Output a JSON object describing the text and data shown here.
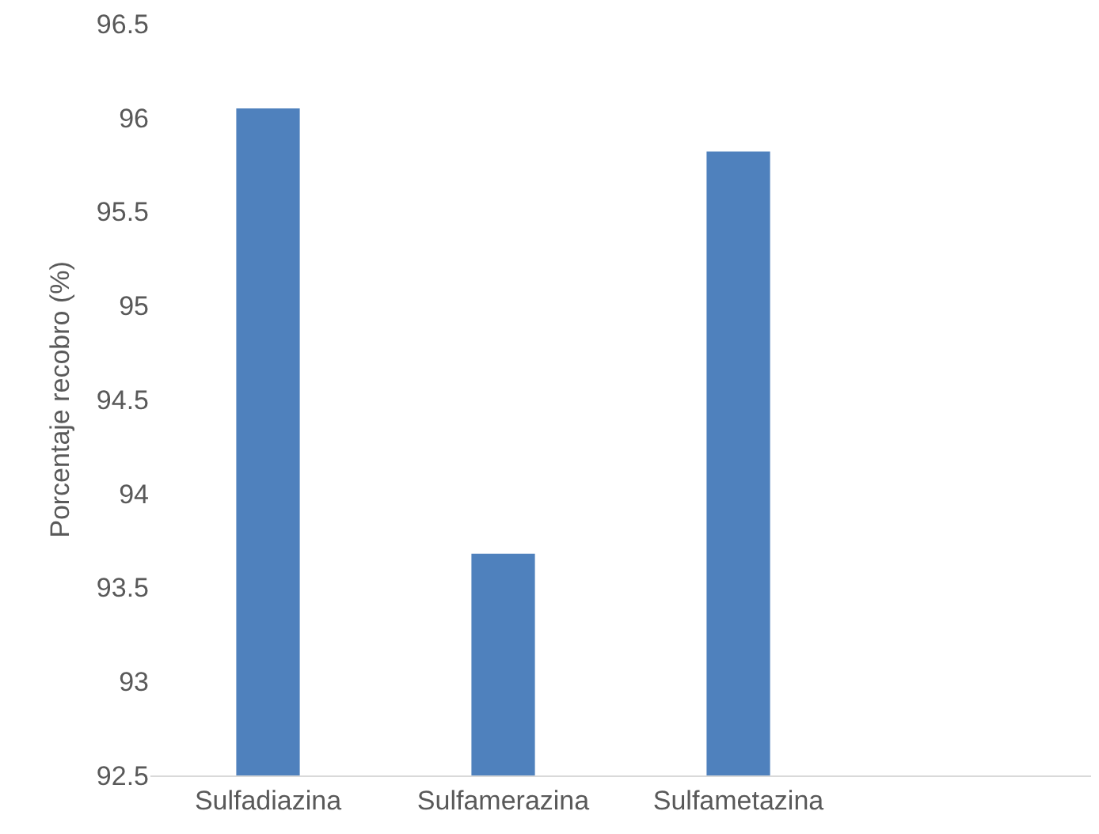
{
  "chart_data": {
    "type": "bar",
    "ylabel": "Porcentaje recobro (%)",
    "categories": [
      "Sulfadiazina",
      "Sulfamerazina",
      "Sulfametazina",
      null
    ],
    "values": [
      96.05,
      93.68,
      95.82,
      null
    ],
    "color": "#4f81bd",
    "ylim": [
      92.5,
      96.5
    ],
    "yticks": [
      92.5,
      93,
      93.5,
      94,
      94.5,
      95,
      95.5,
      96,
      96.5
    ],
    "grid": false
  }
}
